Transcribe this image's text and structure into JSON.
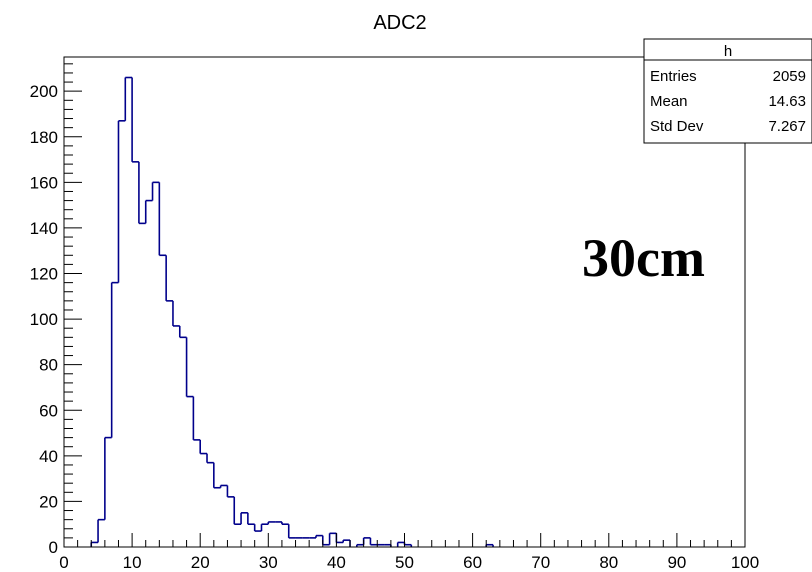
{
  "chart_data": {
    "type": "histogram",
    "title": "ADC2",
    "xlabel": "",
    "ylabel": "",
    "xlim": [
      0,
      100
    ],
    "ylim": [
      0,
      215
    ],
    "x_ticks": [
      0,
      10,
      20,
      30,
      40,
      50,
      60,
      70,
      80,
      90,
      100
    ],
    "y_ticks": [
      0,
      20,
      40,
      60,
      80,
      100,
      120,
      140,
      160,
      180,
      200
    ],
    "bin_width": 1,
    "bin_start": 0,
    "series": [
      {
        "color": "#00008b",
        "values": [
          0,
          0,
          0,
          0,
          2,
          12,
          48,
          116,
          187,
          206,
          169,
          142,
          152,
          160,
          128,
          108,
          97,
          92,
          66,
          47,
          41,
          37,
          26,
          27,
          22,
          10,
          15,
          10,
          7,
          10,
          11,
          11,
          10,
          4,
          4,
          4,
          4,
          5,
          1,
          6,
          2,
          3,
          0,
          1,
          4,
          1,
          1,
          1,
          0,
          2,
          1,
          0,
          0,
          0,
          0,
          0,
          0,
          0,
          0,
          0,
          0,
          0,
          1,
          0,
          0,
          0,
          0,
          0,
          0,
          0,
          0,
          0,
          0,
          0,
          0,
          0,
          0,
          0,
          0,
          0,
          0,
          0,
          0,
          0,
          0,
          0,
          0,
          0,
          0,
          0,
          0,
          0,
          0,
          0,
          0,
          0,
          0,
          0,
          0,
          0
        ]
      }
    ],
    "stats_box": {
      "name": "h",
      "rows": [
        {
          "label": "Entries",
          "value": "2059"
        },
        {
          "label": "Mean",
          "value": "14.63"
        },
        {
          "label": "Std Dev",
          "value": "7.267"
        }
      ]
    },
    "annotations": [
      "30cm"
    ],
    "grid": false,
    "legend": "none"
  }
}
